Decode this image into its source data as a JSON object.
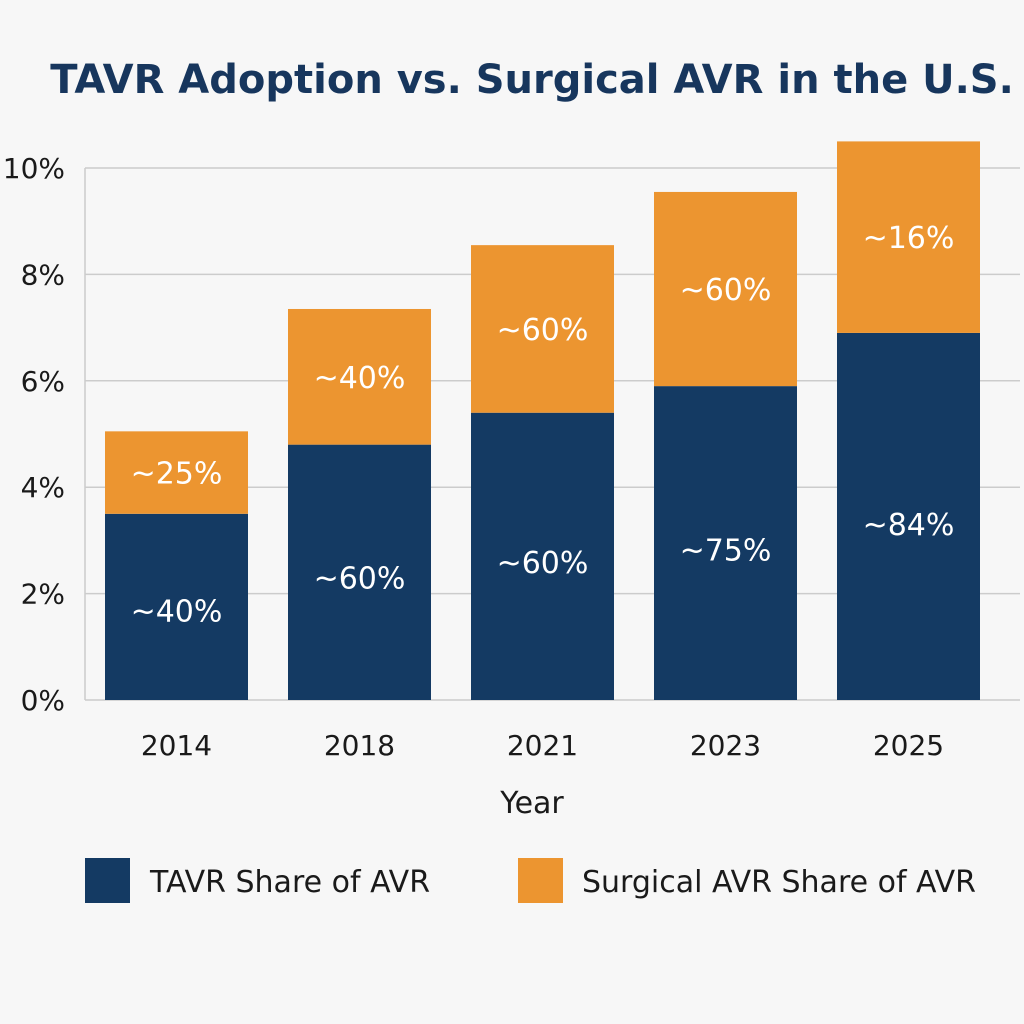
{
  "chart_data": {
    "type": "bar",
    "stacked": true,
    "title": "TAVR Adoption vs. Surgical AVR in the U.S.",
    "xlabel": "Year",
    "ylabel": "",
    "categories": [
      "2014",
      "2018",
      "2021",
      "2023",
      "2025"
    ],
    "y_ticks": [
      "0%",
      "2%",
      "4%",
      "6%",
      "8%",
      "10%"
    ],
    "ylim": [
      0,
      10
    ],
    "grid": true,
    "legend_position": "bottom",
    "series": [
      {
        "name": "TAVR Share of AVR",
        "color": "#143a63",
        "values": [
          3.5,
          4.8,
          5.4,
          5.9,
          6.9
        ],
        "labels": [
          "~40%",
          "~60%",
          "~60%",
          "~75%",
          "~84%"
        ]
      },
      {
        "name": "Surgical AVR Share of AVR",
        "color": "#ec9530",
        "values": [
          1.55,
          2.55,
          3.15,
          3.65,
          3.6
        ],
        "labels": [
          "~25%",
          "~40%",
          "~60%",
          "~60%",
          "~16%"
        ]
      }
    ]
  }
}
